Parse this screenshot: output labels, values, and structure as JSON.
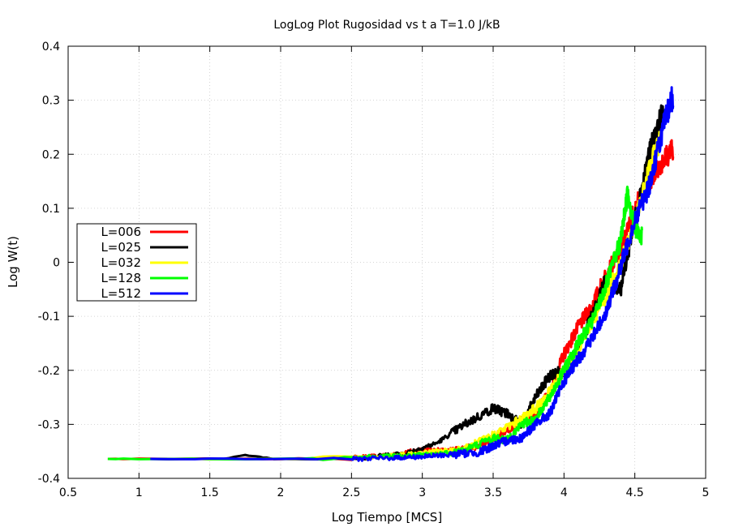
{
  "chart_data": {
    "type": "line",
    "title": "LogLog Plot Rugosidad vs t a T=1.0 J/kB",
    "xlabel": "Log Tiempo [MCS]",
    "ylabel": "Log W(t)",
    "xlim": [
      0.5,
      5
    ],
    "ylim": [
      -0.4,
      0.4
    ],
    "xticks": [
      "0.5",
      "1",
      "1.5",
      "2",
      "2.5",
      "3",
      "3.5",
      "4",
      "4.5",
      "5"
    ],
    "yticks": [
      "-0.4",
      "-0.3",
      "-0.2",
      "-0.1",
      "0",
      "0.1",
      "0.2",
      "0.3",
      "0.4"
    ],
    "grid": true,
    "legend_position": "left",
    "series": [
      {
        "name": "L=006",
        "color": "#ff0000",
        "points": [
          [
            0.78,
            -0.364
          ],
          [
            1.0,
            -0.364
          ],
          [
            1.5,
            -0.364
          ],
          [
            2.0,
            -0.364
          ],
          [
            2.5,
            -0.362
          ],
          [
            2.8,
            -0.356
          ],
          [
            3.0,
            -0.346
          ],
          [
            3.2,
            -0.35
          ],
          [
            3.4,
            -0.34
          ],
          [
            3.6,
            -0.31
          ],
          [
            3.8,
            -0.28
          ],
          [
            3.9,
            -0.24
          ],
          [
            4.0,
            -0.17
          ],
          [
            4.1,
            -0.12
          ],
          [
            4.2,
            -0.08
          ],
          [
            4.3,
            -0.02
          ],
          [
            4.4,
            0.02
          ],
          [
            4.5,
            0.1
          ],
          [
            4.6,
            0.15
          ],
          [
            4.7,
            0.19
          ],
          [
            4.77,
            0.21
          ]
        ]
      },
      {
        "name": "L=025",
        "color": "#000000",
        "points": [
          [
            1.08,
            -0.364
          ],
          [
            1.6,
            -0.364
          ],
          [
            1.75,
            -0.357
          ],
          [
            1.85,
            -0.36
          ],
          [
            1.95,
            -0.364
          ],
          [
            2.2,
            -0.364
          ],
          [
            2.6,
            -0.362
          ],
          [
            2.9,
            -0.352
          ],
          [
            3.1,
            -0.335
          ],
          [
            3.3,
            -0.3
          ],
          [
            3.5,
            -0.27
          ],
          [
            3.6,
            -0.28
          ],
          [
            3.7,
            -0.3
          ],
          [
            3.8,
            -0.25
          ],
          [
            3.9,
            -0.21
          ],
          [
            4.0,
            -0.2
          ],
          [
            4.1,
            -0.16
          ],
          [
            4.2,
            -0.1
          ],
          [
            4.3,
            -0.03
          ],
          [
            4.4,
            -0.05
          ],
          [
            4.5,
            0.08
          ],
          [
            4.6,
            0.2
          ],
          [
            4.7,
            0.28
          ]
        ]
      },
      {
        "name": "L=032",
        "color": "#ffff00",
        "points": [
          [
            1.2,
            -0.364
          ],
          [
            1.8,
            -0.364
          ],
          [
            2.2,
            -0.364
          ],
          [
            2.6,
            -0.362
          ],
          [
            2.9,
            -0.356
          ],
          [
            3.1,
            -0.35
          ],
          [
            3.3,
            -0.346
          ],
          [
            3.5,
            -0.32
          ],
          [
            3.7,
            -0.29
          ],
          [
            3.8,
            -0.27
          ],
          [
            3.9,
            -0.24
          ],
          [
            4.0,
            -0.2
          ],
          [
            4.1,
            -0.16
          ],
          [
            4.2,
            -0.11
          ],
          [
            4.3,
            -0.06
          ],
          [
            4.4,
            0.0
          ],
          [
            4.5,
            0.07
          ],
          [
            4.6,
            0.17
          ],
          [
            4.68,
            0.23
          ]
        ]
      },
      {
        "name": "L=128",
        "color": "#00ff00",
        "points": [
          [
            0.78,
            -0.364
          ],
          [
            1.0,
            -0.364
          ],
          [
            1.5,
            -0.364
          ],
          [
            2.0,
            -0.364
          ],
          [
            2.3,
            -0.362
          ],
          [
            2.6,
            -0.36
          ],
          [
            2.9,
            -0.358
          ],
          [
            3.1,
            -0.355
          ],
          [
            3.3,
            -0.348
          ],
          [
            3.5,
            -0.325
          ],
          [
            3.6,
            -0.33
          ],
          [
            3.7,
            -0.3
          ],
          [
            3.8,
            -0.29
          ],
          [
            3.9,
            -0.25
          ],
          [
            4.0,
            -0.2
          ],
          [
            4.1,
            -0.15
          ],
          [
            4.2,
            -0.11
          ],
          [
            4.3,
            -0.04
          ],
          [
            4.4,
            0.04
          ],
          [
            4.45,
            0.13
          ],
          [
            4.5,
            0.06
          ],
          [
            4.55,
            0.05
          ]
        ]
      },
      {
        "name": "L=512",
        "color": "#0000ff",
        "points": [
          [
            1.08,
            -0.364
          ],
          [
            1.5,
            -0.364
          ],
          [
            2.0,
            -0.364
          ],
          [
            2.5,
            -0.364
          ],
          [
            2.8,
            -0.362
          ],
          [
            3.0,
            -0.36
          ],
          [
            3.2,
            -0.356
          ],
          [
            3.4,
            -0.352
          ],
          [
            3.5,
            -0.34
          ],
          [
            3.6,
            -0.33
          ],
          [
            3.7,
            -0.325
          ],
          [
            3.8,
            -0.3
          ],
          [
            3.9,
            -0.28
          ],
          [
            4.0,
            -0.22
          ],
          [
            4.1,
            -0.18
          ],
          [
            4.2,
            -0.14
          ],
          [
            4.3,
            -0.09
          ],
          [
            4.4,
            -0.01
          ],
          [
            4.5,
            0.08
          ],
          [
            4.6,
            0.14
          ],
          [
            4.7,
            0.25
          ],
          [
            4.77,
            0.31
          ]
        ]
      }
    ]
  }
}
